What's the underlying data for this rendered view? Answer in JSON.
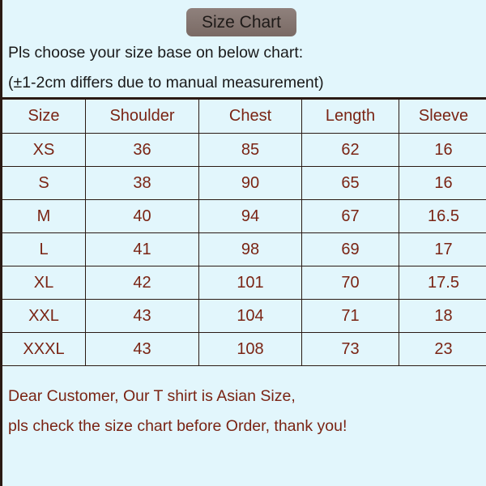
{
  "title": "Size Chart",
  "intro": [
    "Pls choose your size base on below chart:",
    "(±1-2cm differs due to manual measurement)"
  ],
  "table": {
    "headers": [
      "Size",
      "Shoulder",
      "Chest",
      "Length",
      "Sleeve"
    ],
    "rows": [
      [
        "XS",
        "36",
        "85",
        "62",
        "16"
      ],
      [
        "S",
        "38",
        "90",
        "65",
        "16"
      ],
      [
        "M",
        "40",
        "94",
        "67",
        "16.5"
      ],
      [
        "L",
        "41",
        "98",
        "69",
        "17"
      ],
      [
        "XL",
        "42",
        "101",
        "70",
        "17.5"
      ],
      [
        "XXL",
        "43",
        "104",
        "71",
        "18"
      ],
      [
        "XXXL",
        "43",
        "108",
        "73",
        "23"
      ]
    ]
  },
  "note": [
    "Dear Customer, Our T shirt is Asian Size,",
    "pls check the size chart before Order, thank you!"
  ],
  "colors": {
    "background": "#e2f6fc",
    "text_accent": "#7a2414",
    "title_box": "#857671"
  }
}
